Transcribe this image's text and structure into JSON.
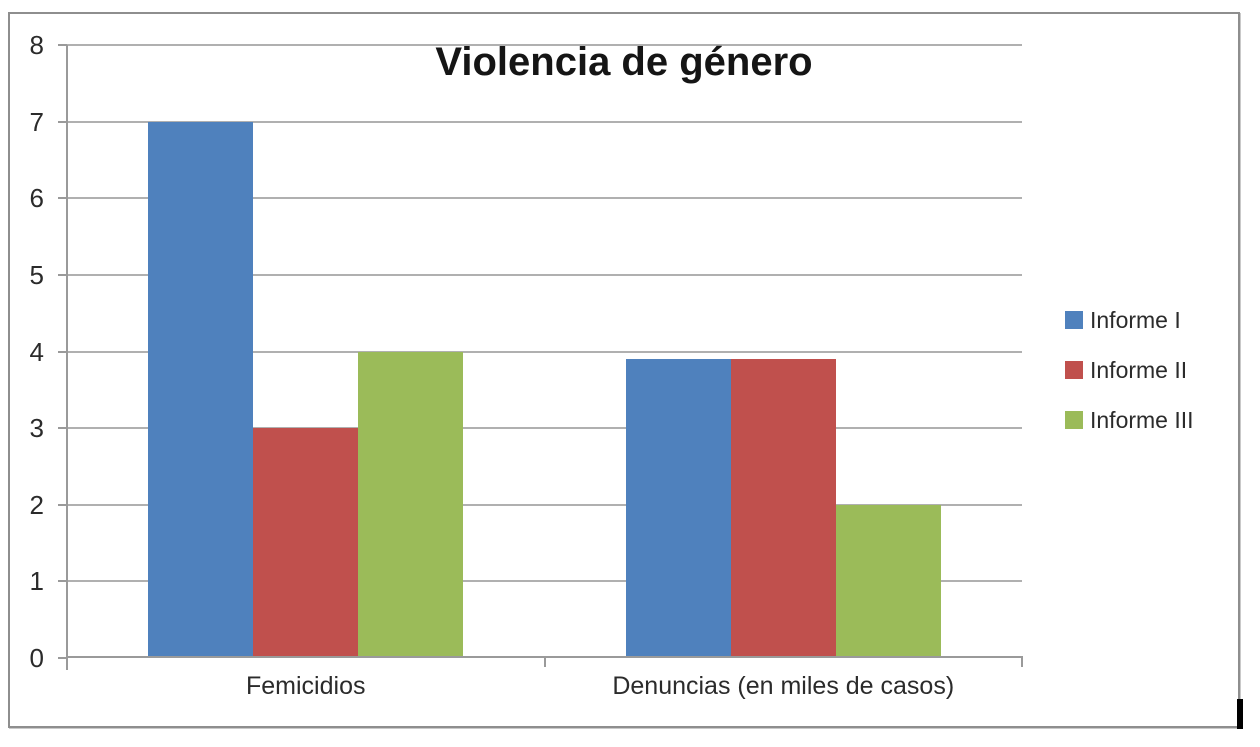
{
  "chart_data": {
    "type": "bar",
    "title": "Violencia de género",
    "categories": [
      "Femicidios",
      "Denuncias (en miles de casos)"
    ],
    "series": [
      {
        "name": "Informe I",
        "color": "#4F81BD",
        "values": [
          7,
          3.9
        ]
      },
      {
        "name": "Informe II",
        "color": "#C0504D",
        "values": [
          3,
          3.9
        ]
      },
      {
        "name": "Informe III",
        "color": "#9BBB59",
        "values": [
          4,
          2
        ]
      }
    ],
    "ylim": [
      0,
      8
    ],
    "yticks": [
      0,
      1,
      2,
      3,
      4,
      5,
      6,
      7,
      8
    ],
    "xlabel": "",
    "ylabel": "",
    "grid": true,
    "legend_position": "right",
    "colors": {
      "gridline": "#b0b0b0",
      "axis": "#9a9a9a",
      "text": "#2b2b2b",
      "frame_border": "#8e8e8e"
    }
  }
}
